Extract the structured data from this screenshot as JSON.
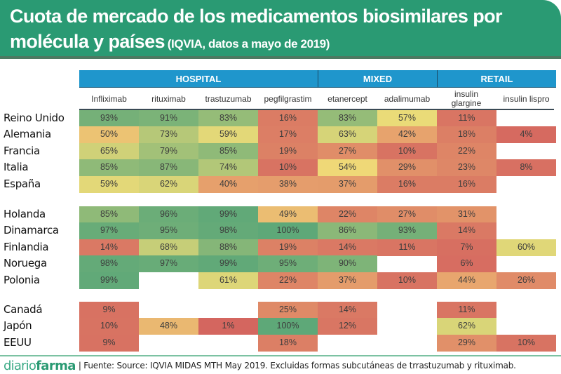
{
  "header": {
    "title_line1": "Cuota de mercado de los medicamentos biosimilares por",
    "title_line2": "molécula y países",
    "subtitle": "(IQVIA, datos a mayo de 2019)"
  },
  "footer": {
    "brand_light": "diario",
    "brand_bold": "farma",
    "source": "| Fuente: Source: IQVIA MIDAS MTH May 2019. Excluidas formas subcutáneas de trrastuzumab y rituximab."
  },
  "chart_data": {
    "type": "heatmap",
    "title": "Cuota de mercado de los medicamentos biosimilares por molécula y países (IQVIA, datos a mayo de 2019)",
    "value_unit": "%",
    "color_scale": {
      "low": "#d4645f",
      "mid": "#f0dd78",
      "high": "#5ea878"
    },
    "groups": [
      {
        "label": "HOSPITAL",
        "columns": [
          0,
          1,
          2,
          3
        ]
      },
      {
        "label": "MIXED",
        "columns": [
          4,
          5
        ]
      },
      {
        "label": "RETAIL",
        "columns": [
          6,
          7
        ]
      }
    ],
    "columns": [
      "Infliximab",
      "rituximab",
      "trastuzumab",
      "pegfilgrastim",
      "etanercept",
      "adalimumab",
      "insulin glargine",
      "insulin lispro"
    ],
    "row_blocks": [
      [
        "Reino Unido",
        "Alemania",
        "Francia",
        "Italia",
        "España"
      ],
      [
        "Holanda",
        "Dinamarca",
        "Finlandia",
        "Noruega",
        "Polonia"
      ],
      [
        "Canadá",
        "Japón",
        "EEUU"
      ]
    ],
    "rows": [
      {
        "country": "Reino Unido",
        "values": [
          93,
          91,
          83,
          16,
          83,
          57,
          11,
          null
        ]
      },
      {
        "country": "Alemania",
        "values": [
          50,
          73,
          59,
          17,
          63,
          42,
          18,
          4
        ]
      },
      {
        "country": "Francia",
        "values": [
          65,
          79,
          85,
          19,
          27,
          10,
          22,
          null
        ]
      },
      {
        "country": "Italia",
        "values": [
          85,
          87,
          74,
          10,
          54,
          29,
          23,
          8
        ]
      },
      {
        "country": "España",
        "values": [
          59,
          62,
          40,
          38,
          37,
          16,
          16,
          null
        ]
      },
      {
        "country": "Holanda",
        "values": [
          85,
          96,
          99,
          49,
          22,
          27,
          31,
          null
        ]
      },
      {
        "country": "Dinamarca",
        "values": [
          97,
          95,
          98,
          100,
          86,
          93,
          14,
          null
        ]
      },
      {
        "country": "Finlandia",
        "values": [
          14,
          68,
          88,
          19,
          14,
          11,
          7,
          60
        ]
      },
      {
        "country": "Noruega",
        "values": [
          98,
          97,
          99,
          95,
          90,
          null,
          6,
          null
        ]
      },
      {
        "country": "Polonia",
        "values": [
          99,
          null,
          61,
          22,
          37,
          10,
          44,
          26
        ]
      },
      {
        "country": "Canadá",
        "values": [
          9,
          null,
          null,
          25,
          14,
          null,
          11,
          null
        ]
      },
      {
        "country": "Japón",
        "values": [
          10,
          48,
          1,
          100,
          12,
          null,
          62,
          null
        ]
      },
      {
        "country": "EEUU",
        "values": [
          9,
          null,
          null,
          18,
          null,
          null,
          29,
          10
        ]
      }
    ]
  }
}
